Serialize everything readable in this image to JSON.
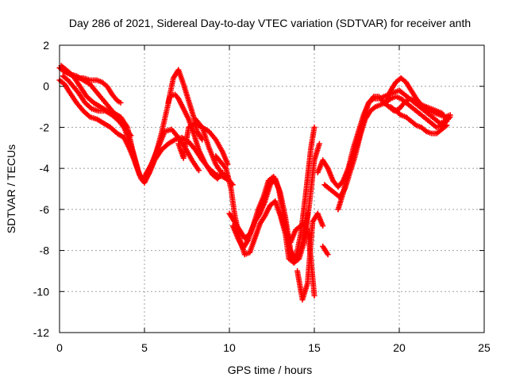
{
  "chart_data": {
    "type": "scatter",
    "title": "Day 286 of 2021, Sidereal Day-to-day VTEC variation (SDTVAR) for receiver anth",
    "xlabel": "GPS time / hours",
    "ylabel": "SDTVAR / TECUs",
    "xlim": [
      0,
      25
    ],
    "ylim": [
      -12,
      2
    ],
    "xticks": [
      0,
      5,
      10,
      15,
      20,
      25
    ],
    "yticks": [
      2,
      0,
      -2,
      -4,
      -6,
      -8,
      -10,
      -12
    ],
    "grid": true,
    "marker": "plus",
    "color": "#ff0000",
    "series": [
      {
        "x": [
          0.0,
          0.3,
          0.6,
          1.0,
          1.4,
          1.8,
          2.2,
          2.6,
          3.0,
          3.4,
          3.8,
          4.2,
          4.5,
          4.8,
          5.0,
          5.3,
          5.7,
          6.0,
          6.3,
          6.5,
          6.8,
          7.0,
          7.3,
          7.6,
          7.9,
          8.2,
          8.6,
          9.0,
          9.3,
          9.6
        ],
        "y": [
          0.9,
          0.7,
          0.6,
          0.5,
          0.3,
          0.1,
          -0.3,
          -0.7,
          -1.1,
          -1.5,
          -2.0,
          -2.9,
          -3.8,
          -4.5,
          -4.7,
          -4.2,
          -3.2,
          -2.3,
          -1.2,
          -0.5,
          -0.4,
          -0.6,
          -1.1,
          -1.6,
          -2.3,
          -3.1,
          -3.8,
          -4.3,
          -4.5,
          -4.2
        ]
      },
      {
        "x": [
          0.0,
          0.3,
          0.6,
          1.0,
          1.4,
          1.8,
          2.2,
          2.6,
          3.0,
          3.4,
          3.8,
          4.1,
          4.4,
          4.7,
          5.0,
          5.3,
          5.6,
          6.0,
          6.4,
          6.8,
          7.2,
          7.6,
          8.0,
          8.4,
          8.8,
          9.2,
          9.6,
          10.0,
          10.2
        ],
        "y": [
          0.3,
          0.1,
          -0.3,
          -0.8,
          -1.2,
          -1.5,
          -1.6,
          -1.8,
          -2.0,
          -2.3,
          -2.5,
          -3.0,
          -3.6,
          -4.3,
          -4.6,
          -4.2,
          -3.6,
          -3.1,
          -2.8,
          -2.6,
          -2.5,
          -2.7,
          -3.1,
          -3.6,
          -4.0,
          -4.3,
          -4.4,
          -4.6,
          -4.8
        ]
      },
      {
        "x": [
          0.2,
          0.5,
          0.8,
          1.1,
          1.5,
          1.9,
          2.3,
          2.7,
          3.1,
          3.5,
          3.9,
          4.2
        ],
        "y": [
          0.5,
          0.3,
          0.0,
          -0.3,
          -0.8,
          -1.1,
          -1.2,
          -1.2,
          -1.4,
          -1.7,
          -2.1,
          -2.4
        ]
      },
      {
        "x": [
          0.1,
          0.4,
          0.8,
          1.2,
          1.6,
          2.0,
          2.4,
          2.8,
          3.2,
          3.6,
          4.0,
          4.3,
          4.6
        ],
        "y": [
          1.0,
          0.8,
          0.5,
          0.0,
          -0.5,
          -0.8,
          -1.0,
          -1.2,
          -1.3,
          -1.5,
          -2.0,
          -3.1,
          -4.0
        ]
      },
      {
        "x": [
          0.2,
          0.6,
          1.0,
          1.4,
          1.8,
          2.2,
          2.5,
          2.8,
          3.1,
          3.4,
          3.6
        ],
        "y": [
          0.8,
          0.6,
          0.4,
          0.4,
          0.3,
          0.3,
          0.2,
          0.0,
          -0.4,
          -0.7,
          -0.8
        ]
      },
      {
        "x": [
          5.0,
          5.4,
          5.8,
          6.2,
          6.6,
          7.0,
          7.4,
          7.8,
          8.2
        ],
        "y": [
          -4.4,
          -3.8,
          -3.0,
          -2.2,
          -2.1,
          -2.5,
          -3.0,
          -3.6,
          -4.1
        ]
      },
      {
        "x": [
          6.4,
          6.7,
          7.0,
          7.3,
          7.6,
          7.9,
          8.1,
          8.4
        ],
        "y": [
          -0.8,
          0.4,
          0.8,
          0.1,
          -0.7,
          -1.5,
          -2.2,
          -2.6
        ]
      },
      {
        "x": [
          7.0,
          7.3,
          7.6,
          8.0,
          8.4,
          8.8,
          9.2,
          9.6,
          9.9
        ],
        "y": [
          -2.8,
          -3.5,
          -2.0,
          -1.8,
          -2.0,
          -3.0,
          -3.8,
          -4.3,
          -4.4
        ]
      },
      {
        "x": [
          8.0,
          8.4,
          8.8,
          9.2,
          9.6,
          9.9
        ],
        "y": [
          -1.6,
          -2.0,
          -2.2,
          -2.6,
          -3.2,
          -3.8
        ]
      },
      {
        "x": [
          9.2,
          9.5,
          9.8,
          10.1,
          10.3,
          10.6,
          10.9,
          11.2,
          11.5,
          11.8,
          12.1,
          12.4,
          12.7,
          13.0,
          13.3,
          13.5,
          13.8,
          14.1,
          14.4,
          14.6
        ],
        "y": [
          -3.4,
          -3.7,
          -4.0,
          -5.0,
          -6.2,
          -7.4,
          -8.2,
          -8.1,
          -7.4,
          -6.7,
          -6.3,
          -5.8,
          -5.6,
          -6.3,
          -7.2,
          -8.4,
          -8.6,
          -8.2,
          -7.3,
          -6.2
        ]
      },
      {
        "x": [
          10.0,
          10.3,
          10.6,
          10.9,
          11.2,
          11.5,
          11.8,
          12.1,
          12.4,
          12.7,
          13.0,
          13.3,
          13.6,
          13.9,
          14.2,
          14.5,
          14.8,
          15.0
        ],
        "y": [
          -6.2,
          -6.6,
          -7.0,
          -7.4,
          -7.2,
          -6.6,
          -6.2,
          -5.6,
          -4.8,
          -4.5,
          -5.2,
          -6.4,
          -8.0,
          -8.4,
          -7.2,
          -5.2,
          -3.0,
          -2.0
        ]
      },
      {
        "x": [
          10.2,
          10.5,
          10.8,
          11.1,
          11.4,
          11.7,
          12.0,
          12.3,
          12.6,
          12.9,
          13.2,
          13.5,
          13.8,
          14.1,
          14.4,
          14.7,
          15.0,
          15.3
        ],
        "y": [
          -6.8,
          -7.4,
          -7.9,
          -7.5,
          -6.8,
          -6.0,
          -5.4,
          -4.6,
          -4.4,
          -5.0,
          -6.3,
          -7.8,
          -8.6,
          -8.4,
          -7.6,
          -5.8,
          -3.6,
          -2.8
        ]
      },
      {
        "x": [
          13.0,
          13.3,
          13.6,
          13.9,
          14.2,
          14.4,
          14.6,
          14.8,
          15.0
        ],
        "y": [
          -6.2,
          -7.0,
          -7.6,
          -7.0,
          -6.8,
          -6.7,
          -7.0,
          -8.4,
          -10.2
        ]
      },
      {
        "x": [
          14.0,
          14.3,
          14.6,
          14.9,
          15.2,
          15.5
        ],
        "y": [
          -9.0,
          -10.4,
          -9.6,
          -6.6,
          -6.2,
          -6.8
        ]
      },
      {
        "x": [
          15.5,
          15.8
        ],
        "y": [
          -7.8,
          -8.2
        ]
      },
      {
        "x": [
          15.2,
          15.5,
          15.8,
          16.1,
          16.4,
          16.7,
          17.0,
          17.3,
          17.6,
          17.9,
          18.2,
          18.5,
          18.8,
          19.1,
          19.4,
          19.7,
          20.0,
          20.3,
          20.6,
          20.9,
          21.2,
          21.5,
          21.8,
          22.1,
          22.4,
          22.7,
          23.0
        ],
        "y": [
          -4.2,
          -3.6,
          -4.0,
          -4.6,
          -4.9,
          -4.6,
          -4.0,
          -3.4,
          -2.6,
          -1.6,
          -0.8,
          -0.6,
          -0.6,
          -0.5,
          -0.4,
          -0.3,
          -0.2,
          -0.4,
          -0.6,
          -0.8,
          -1.0,
          -1.2,
          -1.4,
          -1.6,
          -1.8,
          -1.7,
          -1.5
        ]
      },
      {
        "x": [
          15.6,
          15.9,
          16.2,
          16.5,
          16.8,
          17.1,
          17.4,
          17.7,
          18.0,
          18.3,
          18.6,
          18.9,
          19.2,
          19.5,
          19.8,
          20.1,
          20.4,
          20.7,
          21.0,
          21.3,
          21.6,
          21.9,
          22.2,
          22.5,
          22.8
        ],
        "y": [
          -4.8,
          -5.0,
          -5.2,
          -5.4,
          -5.0,
          -4.2,
          -3.4,
          -2.4,
          -1.6,
          -1.2,
          -1.0,
          -0.9,
          -0.8,
          -0.6,
          -0.5,
          -0.6,
          -0.8,
          -1.0,
          -1.2,
          -1.4,
          -1.6,
          -1.8,
          -2.0,
          -1.9,
          -1.7
        ]
      },
      {
        "x": [
          16.4,
          16.7,
          17.0,
          17.3,
          17.6,
          17.9,
          18.2,
          18.5,
          18.8,
          19.1,
          19.4,
          19.7,
          20.0,
          20.3,
          20.6,
          20.9,
          21.2,
          21.5,
          21.8,
          22.1,
          22.4,
          22.7,
          23.0
        ],
        "y": [
          -6.0,
          -5.2,
          -4.0,
          -3.0,
          -2.2,
          -1.4,
          -0.8,
          -0.5,
          -0.5,
          -0.8,
          -1.0,
          -1.2,
          -1.1,
          -0.8,
          -0.6,
          -0.7,
          -0.9,
          -1.1,
          -1.2,
          -1.3,
          -1.4,
          -1.5,
          -1.4
        ]
      },
      {
        "x": [
          19.2,
          19.5,
          19.8,
          20.1,
          20.4,
          20.7,
          21.0,
          21.3,
          21.6,
          21.9,
          22.2,
          22.5,
          22.8
        ],
        "y": [
          -0.8,
          -0.2,
          0.2,
          0.4,
          0.2,
          -0.2,
          -0.6,
          -0.9,
          -1.0,
          -1.1,
          -1.2,
          -1.3,
          -1.6
        ]
      },
      {
        "x": [
          19.5,
          19.8,
          20.1,
          20.4,
          20.7,
          21.0,
          21.3,
          21.6,
          21.9,
          22.2,
          22.5,
          22.8
        ],
        "y": [
          -1.0,
          -1.2,
          -1.4,
          -1.5,
          -1.7,
          -1.9,
          -2.0,
          -2.2,
          -2.3,
          -2.3,
          -2.1,
          -1.9
        ]
      }
    ]
  }
}
